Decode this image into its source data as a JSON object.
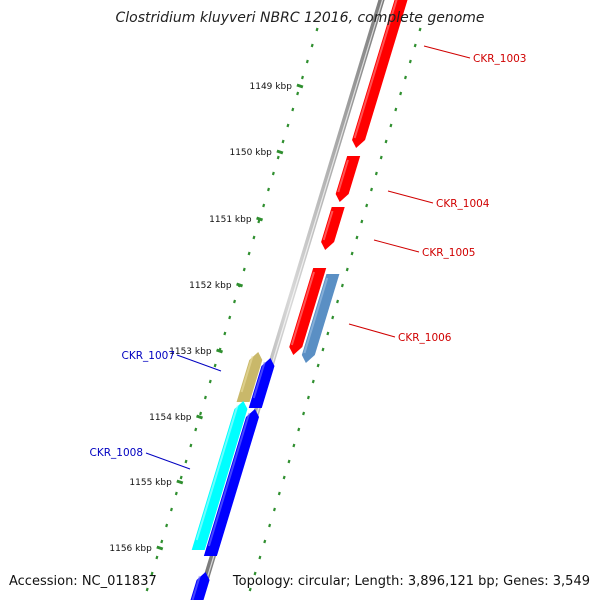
{
  "title": "Clostridium kluyveri NBRC 12016, complete genome",
  "footer": {
    "accession": "Accession: NC_011837",
    "summary": "Topology: circular; Length: 3,896,121 bp; Genes: 3,549"
  },
  "colors": {
    "forward_gene": "#ff0000",
    "reverse_gene": "#0000ff",
    "highlight_forward": "#5a8fc4",
    "highlight_reverse_a": "#c9b86a",
    "highlight_reverse_b": "#00ffff",
    "scale_ticks": "#2f8f2f",
    "backbone": "#9a9a9a"
  },
  "scale": {
    "unit": "kbp",
    "ticks": [
      {
        "kbp": 1149,
        "label": "1149 kbp"
      },
      {
        "kbp": 1150,
        "label": "1150 kbp"
      },
      {
        "kbp": 1151,
        "label": "1151 kbp"
      },
      {
        "kbp": 1152,
        "label": "1152 kbp"
      },
      {
        "kbp": 1153,
        "label": "1153 kbp"
      },
      {
        "kbp": 1154,
        "label": "1154 kbp"
      },
      {
        "kbp": 1155,
        "label": "1155 kbp"
      },
      {
        "kbp": 1156,
        "label": "1156 kbp"
      }
    ]
  },
  "gene_labels": [
    {
      "name": "CKR_1003",
      "strand": "forward"
    },
    {
      "name": "CKR_1004",
      "strand": "forward"
    },
    {
      "name": "CKR_1005",
      "strand": "forward"
    },
    {
      "name": "CKR_1006",
      "strand": "forward"
    },
    {
      "name": "CKR_1007",
      "strand": "reverse"
    },
    {
      "name": "CKR_1008",
      "strand": "reverse"
    }
  ]
}
